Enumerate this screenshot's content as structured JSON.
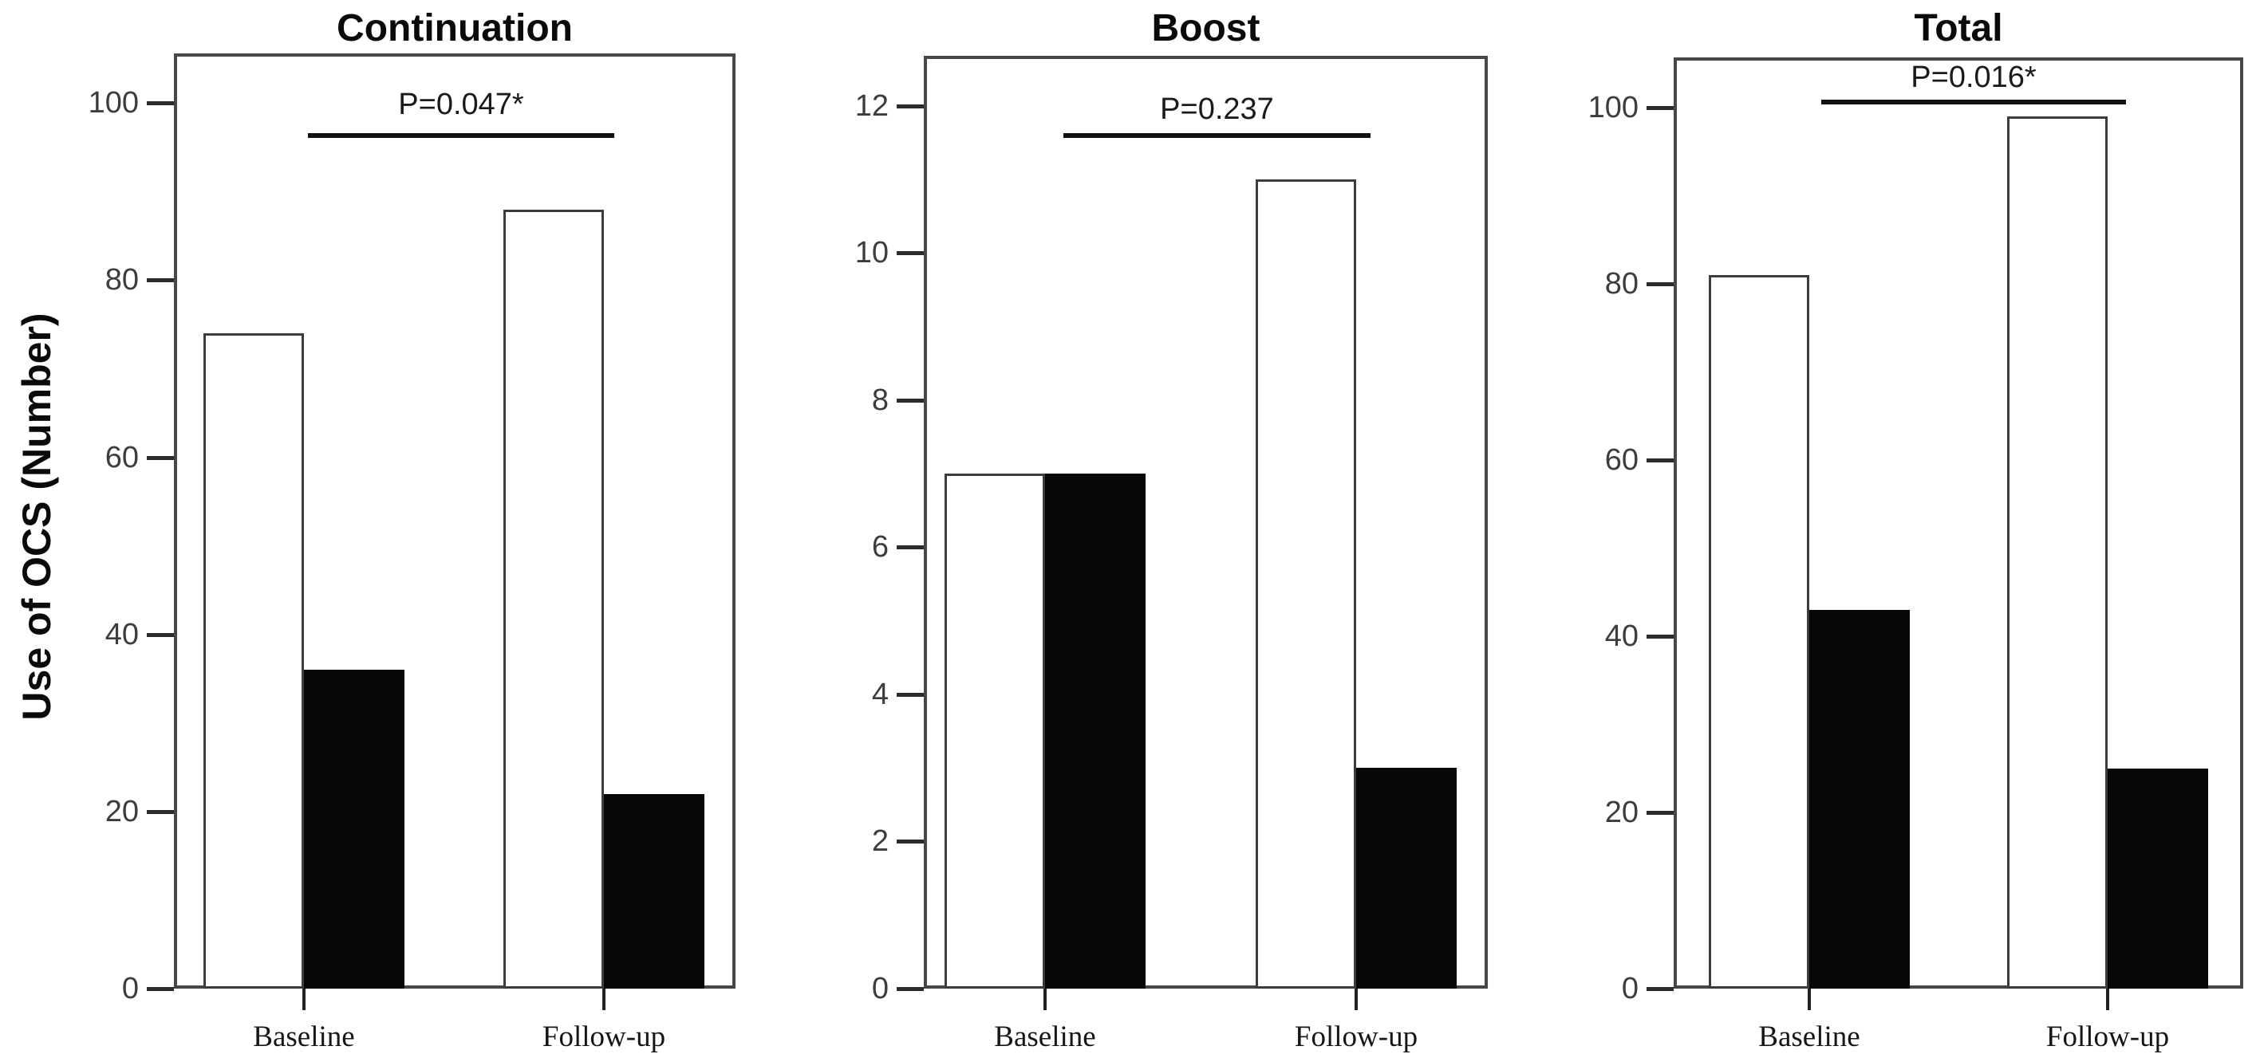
{
  "figure": {
    "ylabel": "Use of OCS (Number)"
  },
  "chart_data": [
    {
      "type": "bar",
      "title": "Continuation",
      "p_annotation": "P=0.047*",
      "categories": [
        "Baseline",
        "Follow-up"
      ],
      "series": [
        {
          "name": "open-bars",
          "fill": "#ffffff",
          "values": [
            74,
            88
          ]
        },
        {
          "name": "filled-bars",
          "fill": "#070707",
          "values": [
            36,
            22
          ]
        }
      ],
      "yticks": [
        0,
        20,
        40,
        60,
        80,
        100
      ],
      "ylim": [
        0,
        105.6
      ],
      "ylabel": "Use of OCS (Number)",
      "grid": false,
      "legend": "none"
    },
    {
      "type": "bar",
      "title": "Boost",
      "p_annotation": "P=0.237",
      "categories": [
        "Baseline",
        "Follow-up"
      ],
      "series": [
        {
          "name": "open-bars",
          "fill": "#ffffff",
          "values": [
            7,
            11
          ]
        },
        {
          "name": "filled-bars",
          "fill": "#070707",
          "values": [
            7,
            3
          ]
        }
      ],
      "yticks": [
        0,
        2,
        4,
        6,
        8,
        10,
        12
      ],
      "ylim": [
        0,
        12.68
      ],
      "ylabel": "Use of OCS (Number)",
      "grid": false,
      "legend": "none"
    },
    {
      "type": "bar",
      "title": "Total",
      "p_annotation": "P=0.016*",
      "categories": [
        "Baseline",
        "Follow-up"
      ],
      "series": [
        {
          "name": "open-bars",
          "fill": "#ffffff",
          "values": [
            81,
            99
          ]
        },
        {
          "name": "filled-bars",
          "fill": "#070707",
          "values": [
            43,
            25
          ]
        }
      ],
      "yticks": [
        0,
        20,
        40,
        60,
        80,
        100
      ],
      "ylim": [
        0,
        105.7
      ],
      "ylabel": "Use of OCS (Number)",
      "grid": false,
      "legend": "none"
    }
  ],
  "colors": {
    "background": "#ffffff",
    "axis_box": "#474747",
    "open_bar_outline": "#3c3c3c",
    "filled_bar": "#070707",
    "significance_line": "#111111",
    "tick_label": "#3d3d3d",
    "title_text": "#0a0a0a"
  }
}
